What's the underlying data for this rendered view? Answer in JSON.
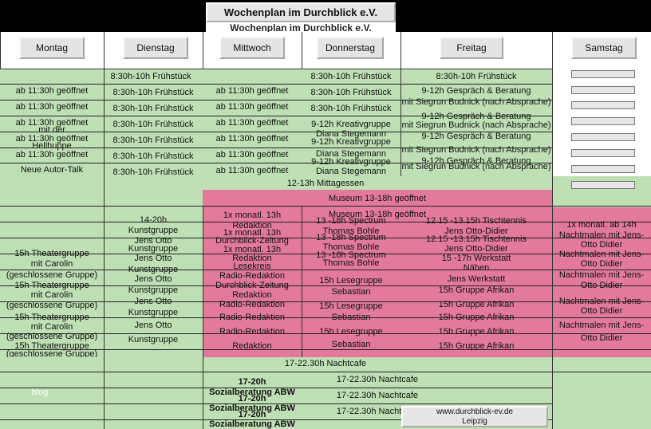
{
  "header": {
    "title": "Wochenplan im Durchblick e.V.",
    "title_shadow": "Wochenplan im Durchblick e.V."
  },
  "days": [
    "Montag",
    "Dienstag",
    "Mittwoch",
    "Donnerstag",
    "Freitag",
    "Samstag"
  ],
  "rows": {
    "fruehstueck_banner_left": "8:30h-10h Frühstück",
    "fruehstueck_banner_mid": "8:30h-10h Frühstück",
    "fruehstueck_banner_right": "8:30h-10h Frühstück",
    "montag_morning": [
      "ab 11:30h geöffnet",
      "ab 11:30h geöffnet",
      "ab 11:30h geöffnet",
      "ab 11:30h geöffnet",
      "ab 11:30h geöffnet"
    ],
    "montag_overlap": [
      "mit der",
      "Hellhuppe",
      "Neue Autor-Talk"
    ],
    "dienstag_morning": [
      "8:30h-10h Frühstück",
      "8:30h-10h Frühstück",
      "8:30h-10h Frühstück",
      "8:30h-10h Frühstück",
      "8:30h-10h Frühstück",
      "8:30h-10h Frühstück"
    ],
    "mittwoch_morning": [
      "ab 11:30h geöffnet",
      "ab 11:30h geöffnet",
      "ab 11:30h geöffnet",
      "ab 11:30h geöffnet",
      "ab 11:30h geöffnet",
      "ab 11:30h geöffnet"
    ],
    "donnerstag_morning": [
      "8:30h-10h Frühstück",
      "8:30h-10h Frühstück",
      "9-12h Kreativgruppe",
      "Diana Stegemann",
      "9-12h Kreativgruppe",
      "Diana Stegemann",
      "9-12h Kreativgruppe",
      "Diana Stegemann"
    ],
    "freitag_morning": [
      "9-12h Gespräch & Beratung",
      "mit Siegrun Budnick (nach Absprache)",
      "9-12h Gespräch & Beratung",
      "mit Siegrun Budnick (nach Absprache)",
      "9-12h Gespräch & Beratung",
      "mit Siegrun Budnick (nach Absprache)",
      "9-12h Gespräch & Beratung",
      "mit Siegrun Budnick (nach Absprache)"
    ],
    "mittagessen": "12-13h Mittagessen",
    "museum": "Museum 13-18h geöffnet",
    "museum_repeat": "Museum 13-18h geöffnet",
    "montag_afternoon": [
      "15h Theatergruppe",
      "mit Carolin",
      "(geschlossene Gruppe)",
      "15h Theatergruppe",
      "mit Carolin",
      "(geschlossene Gruppe)",
      "15h Theatergruppe",
      "mit Carolin",
      "(geschlossene Gruppe)",
      "15h Theatergruppe",
      "(geschlossene Gruppe)"
    ],
    "dienstag_afternoon": [
      "14-20h",
      "Kunstgruppe",
      "Jens Otto",
      "Kunstgruppe",
      "Jens Otto",
      "Kunstgruppe",
      "Jens Otto",
      "Kunstgruppe",
      "Jens Otto",
      "Kunstgruppe",
      "Jens Otto",
      "Kunstgruppe"
    ],
    "mittwoch_afternoon": [
      "1x monatl. 13h",
      "Redaktion",
      "1x monatl. 13h",
      "Durchblick-Zeitung",
      "1x monatl. 13h",
      "Redaktion",
      "Lesekreis",
      "Radio-Redaktion",
      "Durchblick-Zeitung",
      "Redaktion",
      "Radio-Redaktion",
      "Radio-Redaktion",
      "Radio-Redaktion",
      "Redaktion"
    ],
    "donnerstag_afternoon": [
      "13 -18h Spectrum",
      "Thomas Bohle",
      "13 -18h Spectrum",
      "Thomas Bohle",
      "13 -18h Spectrum",
      "Thomas Bohle",
      "15h Lesegruppe",
      "Sebastian",
      "15h Lesegruppe",
      "Sebastian",
      "15h Lesegruppe",
      "Sebastian"
    ],
    "freitag_afternoon": [
      "12.15 -13.15h Tischtennis",
      "Jens Otto-Didier",
      "12.15 -13.15h Tischtennis",
      "Jens Otto-Didier",
      "15 -17h Werkstatt",
      "Nähen",
      "Jens Werkstatt",
      "15h Gruppe Afrikan",
      "15h Gruppe Afrikan",
      "15h Gruppe Afrikan",
      "15h Gruppe Afrikan",
      "15h Gruppe Afrikan"
    ],
    "samstag_afternoon": [
      "1x monatl. ab 14h",
      "Nachtmalen mit Jens-",
      "Otto Didier",
      "Nachtmalen mit Jens-",
      "Otto Didier",
      "Nachtmalen mit Jens-",
      "Otto Didier",
      "Nachtmalen mit Jens-",
      "Otto Didier",
      "Nachtmalen mit Jens-",
      "Otto Didier"
    ],
    "nachtcafe": "17-22.30h Nachtcafe",
    "nachtcafe_repeat": [
      "17-22.30h Nachtcafe",
      "17-22.30h Nachtcafe",
      "17-22.30h Nachtcafe"
    ],
    "montag_evening": "blog",
    "mittwoch_evening": [
      "17-20h",
      "Sozialberatung ABW",
      "17-20h",
      "Sozialberatung ABW",
      "17-20h",
      "Sozialberatung ABW"
    ]
  },
  "footer": {
    "line1": "www.durchblick-ev.de",
    "line2": "Leipzig"
  }
}
